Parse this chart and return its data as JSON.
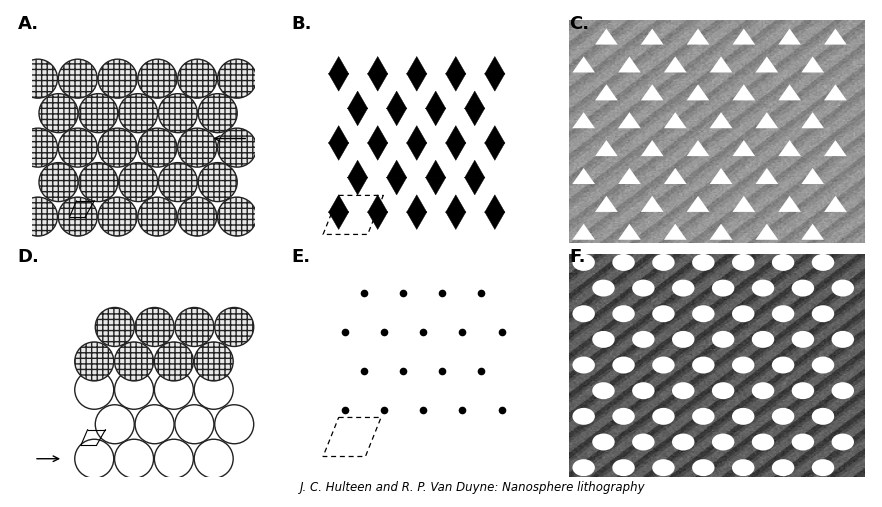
{
  "title": "J. C. Hulteen and R. P. Van Duyne: Nanosphere lithography",
  "panel_labels": [
    "A.",
    "B.",
    "C.",
    "D.",
    "E.",
    "F."
  ],
  "background_color": "#ffffff",
  "label_fontsize": 13,
  "label_fontweight": "bold",
  "citation_fontsize": 8.5,
  "sphere_gray": "#e8e8e8",
  "sphere_edge": "#222222",
  "sphere_lw": 1.0,
  "hatch_color": "#aaaaaa",
  "triangle_color": "#000000",
  "dot_color": "#000000"
}
